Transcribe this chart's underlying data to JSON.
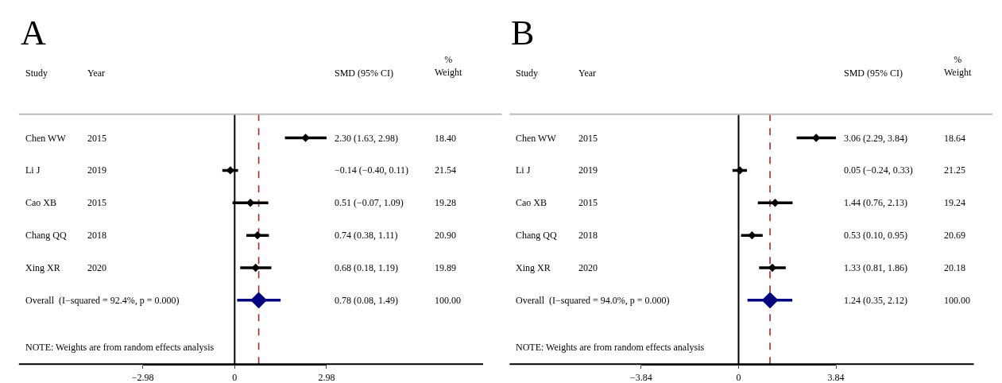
{
  "chart_data": [
    {
      "type": "scatter",
      "title": "A",
      "orientation": "horizontal",
      "categories": [
        "Chen WW",
        "Li J",
        "Cao XB",
        "Chang QQ",
        "Xing XR",
        "Overall  (I−squared = 92.4%, p = 0.000)"
      ],
      "xlim": [
        -2.98,
        2.98
      ],
      "xticks": [
        {
          "value": -2.98,
          "label": "−2.98"
        },
        0,
        2.98
      ],
      "series": [
        {
          "color": "#000000",
          "marker": "diamond",
          "values": [
            2.3,
            -0.14,
            0.51,
            0.74,
            0.68,
            null
          ],
          "errors": [
            [
              1.63,
              2.98
            ],
            [
              -0.4,
              0.11
            ],
            [
              -0.07,
              1.09
            ],
            [
              0.38,
              1.11
            ],
            [
              0.18,
              1.19
            ],
            null
          ]
        },
        {
          "type": "scatter",
          "marker": "diamond",
          "color": "#000080",
          "values": [
            null,
            null,
            null,
            null,
            null,
            0.78
          ],
          "errors": [
            null,
            null,
            null,
            null,
            null,
            [
              0.08,
              1.49
            ]
          ]
        }
      ],
      "ref_lines": [
        {
          "axis": "x",
          "value": 0,
          "color": "#000000",
          "line_style": "solid"
        },
        {
          "axis": "x",
          "value": 0.78,
          "color": "#a52a2a",
          "line_style": "dashed"
        }
      ],
      "annotations": [
        "Study",
        "Year",
        "SMD (95% CI)",
        "%\nWeight",
        "NOTE: Weights are from random effects analysis",
        "2015",
        "2.30 (1.63, 2.98)",
        "18.40",
        "2019",
        "−0.14 (−0.40, 0.11)",
        "21.54",
        "2015",
        "0.51 (−0.07, 1.09)",
        "19.28",
        "2018",
        "0.74 (0.38, 1.11)",
        "20.90",
        "2020",
        "0.68 (0.18, 1.19)",
        "19.89",
        "0.78 (0.08, 1.49)",
        "100.00"
      ]
    },
    {
      "type": "scatter",
      "title": "B",
      "orientation": "horizontal",
      "categories": [
        "Chen WW",
        "Li J",
        "Cao XB",
        "Chang QQ",
        "Xing XR",
        "Overall  (I−squared = 94.0%, p = 0.000)"
      ],
      "xlim": [
        -3.84,
        3.84
      ],
      "xticks": [
        {
          "value": -3.84,
          "label": "−3.84"
        },
        0,
        3.84
      ],
      "series": [
        {
          "color": "#000000",
          "marker": "diamond",
          "values": [
            3.06,
            0.05,
            1.44,
            0.53,
            1.33,
            null
          ],
          "errors": [
            [
              2.29,
              3.84
            ],
            [
              -0.24,
              0.33
            ],
            [
              0.76,
              2.13
            ],
            [
              0.1,
              0.95
            ],
            [
              0.81,
              1.86
            ],
            null
          ]
        },
        {
          "type": "scatter",
          "marker": "diamond",
          "color": "#000080",
          "values": [
            null,
            null,
            null,
            null,
            null,
            1.24
          ],
          "errors": [
            null,
            null,
            null,
            null,
            null,
            [
              0.35,
              2.12
            ]
          ]
        }
      ],
      "ref_lines": [
        {
          "axis": "x",
          "value": 0,
          "color": "#000000",
          "line_style": "solid"
        },
        {
          "axis": "x",
          "value": 1.24,
          "color": "#a52a2a",
          "line_style": "dashed"
        }
      ],
      "annotations": [
        "Study",
        "Year",
        "SMD (95% CI)",
        "%\nWeight",
        "NOTE: Weights are from random effects analysis",
        "2015",
        "3.06 (2.29, 3.84)",
        "18.64",
        "2019",
        "0.05 (−0.24, 0.33)",
        "21.25",
        "2015",
        "1.44 (0.76, 2.13)",
        "19.24",
        "2018",
        "0.53 (0.10, 0.95)",
        "20.69",
        "2020",
        "1.33 (0.81, 1.86)",
        "20.18",
        "1.24 (0.35, 2.12)",
        "100.00"
      ]
    }
  ]
}
